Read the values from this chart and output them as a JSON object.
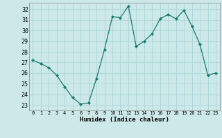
{
  "x": [
    0,
    1,
    2,
    3,
    4,
    5,
    6,
    7,
    8,
    9,
    10,
    11,
    12,
    13,
    14,
    15,
    16,
    17,
    18,
    19,
    20,
    21,
    22,
    23
  ],
  "y": [
    27.2,
    26.9,
    26.5,
    25.8,
    24.7,
    23.7,
    23.1,
    23.2,
    25.5,
    28.2,
    31.3,
    31.2,
    32.3,
    28.5,
    29.0,
    29.7,
    31.1,
    31.5,
    31.1,
    31.9,
    30.4,
    28.7,
    25.8,
    26.0
  ],
  "line_color": "#1a7a6e",
  "marker": "D",
  "marker_size": 2.0,
  "bg_color": "#cce8e8",
  "grid_color": "#b0d8d8",
  "xlabel": "Humidex (Indice chaleur)",
  "ylabel_ticks": [
    23,
    24,
    25,
    26,
    27,
    28,
    29,
    30,
    31,
    32
  ],
  "xlim": [
    -0.5,
    23.5
  ],
  "ylim": [
    22.5,
    32.6
  ],
  "xlabel_fontsize": 6.5,
  "ytick_fontsize": 6.0,
  "xtick_fontsize": 5.0
}
